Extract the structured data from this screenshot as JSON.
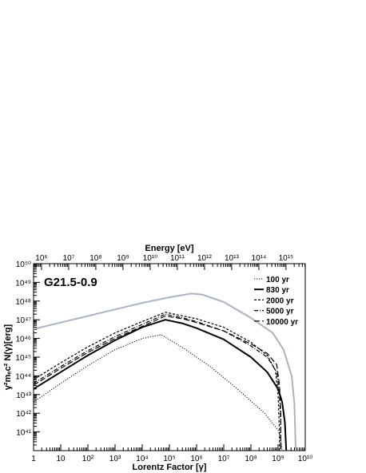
{
  "chart_data": {
    "type": "line",
    "annotation": "G21.5-0.9",
    "xlabel": "Lorentz Factor [γ]",
    "ylabel": "γ²mₑc² N(γ)[erg]",
    "top_xlabel": "Energy [eV]",
    "xscale": "log",
    "yscale": "log",
    "xlim_exp": [
      0,
      10
    ],
    "ylim_exp": [
      40,
      50
    ],
    "x_ticks": [
      "1",
      "10",
      "10²",
      "10³",
      "10⁴",
      "10⁵",
      "10⁶",
      "10⁷",
      "10⁸",
      "10⁹",
      "10¹⁰"
    ],
    "y_ticks": [
      "10⁴¹",
      "10⁴²",
      "10⁴³",
      "10⁴⁴",
      "10⁴⁵",
      "10⁴⁶",
      "10⁴⁷",
      "10⁴⁸",
      "10⁴⁹",
      "10⁵⁰"
    ],
    "top_ticks": [
      "10⁶",
      "10⁷",
      "10⁸",
      "10⁹",
      "10¹⁰",
      "10¹¹",
      "10¹²",
      "10¹³",
      "10¹⁴",
      "10¹⁵"
    ],
    "legend_position": "top-right",
    "series": [
      {
        "name": "100 yr",
        "style": "dotted",
        "color": "#000000",
        "points": [
          [
            0,
            42.6
          ],
          [
            1,
            43.6
          ],
          [
            2,
            44.55
          ],
          [
            3,
            45.4
          ],
          [
            4,
            46.0
          ],
          [
            4.7,
            46.2
          ],
          [
            5.5,
            45.5
          ],
          [
            6.5,
            44.5
          ],
          [
            7.5,
            43.3
          ],
          [
            8.5,
            42.0
          ],
          [
            9.0,
            41.1
          ],
          [
            9.1,
            40.6
          ],
          [
            9.15,
            40.0
          ]
        ]
      },
      {
        "name": "830 yr",
        "style": "solid-thick",
        "color": "#000000",
        "points": [
          [
            0,
            43.3
          ],
          [
            1,
            44.2
          ],
          [
            2,
            45.1
          ],
          [
            3,
            45.9
          ],
          [
            4,
            46.6
          ],
          [
            4.85,
            47.0
          ],
          [
            5.5,
            46.8
          ],
          [
            6,
            46.55
          ],
          [
            7,
            45.95
          ],
          [
            8,
            45.0
          ],
          [
            8.6,
            44.2
          ],
          [
            9.0,
            43.3
          ],
          [
            9.15,
            42.6
          ],
          [
            9.25,
            41.5
          ],
          [
            9.3,
            40.0
          ]
        ]
      },
      {
        "name": "2000 yr",
        "style": "short-dash",
        "color": "#000000",
        "points": [
          [
            0,
            43.8
          ],
          [
            1,
            44.7
          ],
          [
            2,
            45.55
          ],
          [
            3,
            46.3
          ],
          [
            4,
            46.9
          ],
          [
            4.85,
            47.4
          ],
          [
            5.5,
            47.2
          ],
          [
            6,
            47.05
          ],
          [
            7,
            46.6
          ],
          [
            8,
            45.8
          ],
          [
            8.6,
            45.1
          ],
          [
            8.9,
            44.3
          ],
          [
            9.0,
            43.0
          ],
          [
            9.05,
            41.0
          ],
          [
            9.05,
            40.0
          ]
        ]
      },
      {
        "name": "5000 yr",
        "style": "dash-dot",
        "color": "#000000",
        "points": [
          [
            0,
            43.6
          ],
          [
            1,
            44.5
          ],
          [
            2,
            45.35
          ],
          [
            3,
            46.1
          ],
          [
            4,
            46.75
          ],
          [
            4.85,
            47.3
          ],
          [
            5.5,
            47.1
          ],
          [
            6,
            46.9
          ],
          [
            7,
            46.4
          ],
          [
            8,
            45.6
          ],
          [
            8.6,
            45.0
          ],
          [
            8.95,
            44.2
          ],
          [
            9.05,
            43.0
          ],
          [
            9.1,
            41.5
          ],
          [
            9.1,
            40.0
          ]
        ]
      },
      {
        "name": "10000 yr",
        "style": "long-dash",
        "color": "#000000",
        "points": [
          [
            0,
            43.5
          ],
          [
            1,
            44.4
          ],
          [
            2,
            45.25
          ],
          [
            3,
            46.0
          ],
          [
            4,
            46.65
          ],
          [
            4.85,
            47.2
          ],
          [
            5.5,
            47.05
          ],
          [
            6,
            46.85
          ],
          [
            7,
            46.4
          ],
          [
            8,
            45.7
          ],
          [
            8.6,
            45.2
          ],
          [
            8.95,
            44.6
          ],
          [
            9.05,
            43.5
          ],
          [
            9.1,
            42.0
          ],
          [
            9.1,
            40.0
          ]
        ]
      },
      {
        "name": "",
        "style": "solid",
        "color": "#a9b4c0",
        "points": [
          [
            0,
            46.5
          ],
          [
            1,
            46.85
          ],
          [
            2,
            47.2
          ],
          [
            3,
            47.55
          ],
          [
            4,
            47.9
          ],
          [
            5,
            48.2
          ],
          [
            5.8,
            48.4
          ],
          [
            6.2,
            48.35
          ],
          [
            7,
            47.95
          ],
          [
            8,
            47.1
          ],
          [
            8.8,
            46.3
          ],
          [
            9.2,
            45.4
          ],
          [
            9.5,
            44.0
          ],
          [
            9.6,
            42.5
          ],
          [
            9.65,
            40.0
          ]
        ]
      }
    ]
  }
}
